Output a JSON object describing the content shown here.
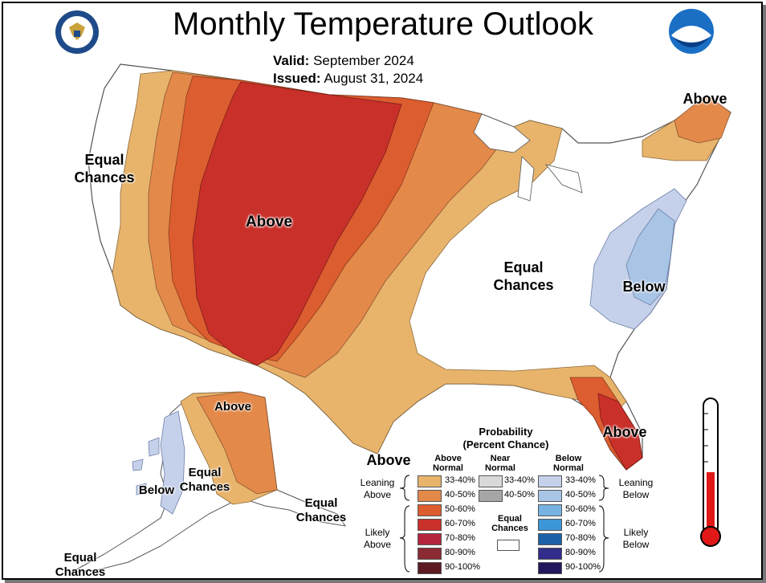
{
  "header": {
    "title": "Monthly Temperature Outlook",
    "valid_label": "Valid:",
    "valid_value": "September 2024",
    "issued_label": "Issued:",
    "issued_value": "August 31, 2024"
  },
  "logos": {
    "left": "commerce-seal",
    "right": "NOAA"
  },
  "map_labels": {
    "west_equal": "Equal Chances",
    "central_above": "Above",
    "east_equal": "Equal Chances",
    "east_below": "Below",
    "maine_above": "Above",
    "florida_above": "Above",
    "texas_above": "Above",
    "alaska_above": "Above",
    "alaska_equal": "Equal Chances",
    "alaska_below": "Below",
    "aleutian_equal": "Equal Chances",
    "southwest_ak_equal": "Equal Chances"
  },
  "legend": {
    "title_line1": "Probability",
    "title_line2": "(Percent Chance)",
    "above_header": "Above Normal",
    "near_header": "Near Normal",
    "below_header": "Below Normal",
    "leaning_above": "Leaning Above",
    "likely_above": "Likely Above",
    "leaning_below": "Leaning Below",
    "likely_below": "Likely Below",
    "equal_chances": "Equal Chances",
    "ranges": [
      "33-40%",
      "40-50%",
      "50-60%",
      "60-70%",
      "70-80%",
      "80-90%",
      "90-100%"
    ],
    "near_ranges": [
      "33-40%",
      "40-50%"
    ],
    "above_colors": [
      "#e8b46c",
      "#e3894a",
      "#dc5d2f",
      "#c9302a",
      "#b5263e",
      "#8a2a33",
      "#5e1a22"
    ],
    "near_colors": [
      "#d9d9d9",
      "#a6a6a6"
    ],
    "below_colors": [
      "#c5d1ea",
      "#a8c5e6",
      "#76b3e2",
      "#3d96d8",
      "#1d62a8",
      "#322c8a",
      "#22185e"
    ]
  },
  "colors": {
    "lean_above_33_40": "#e8b46c",
    "above_40_50": "#e3894a",
    "above_50_60": "#dc5d2f",
    "above_60_70": "#c9302a",
    "below_33_40": "#c5d1ea",
    "below_40_50": "#a8c5e6",
    "thermometer_red": "#e01818"
  }
}
